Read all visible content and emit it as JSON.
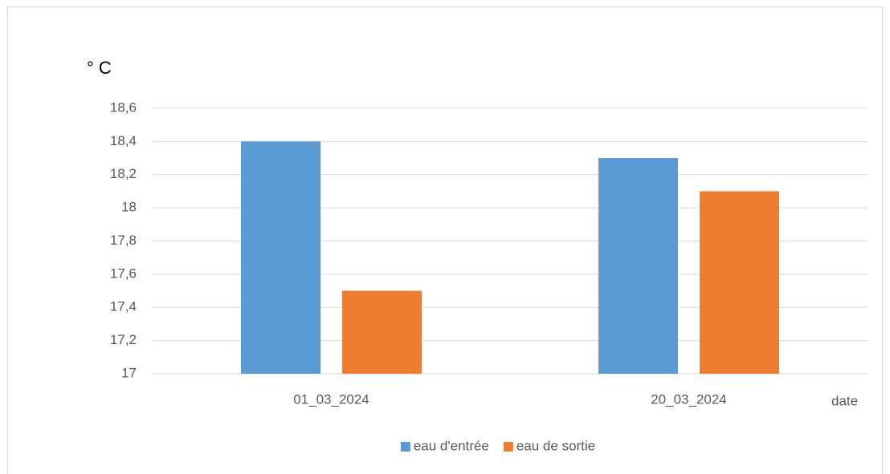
{
  "chart_data": {
    "type": "bar",
    "y_label": "° C",
    "x_label": "date",
    "categories": [
      "01_03_2024",
      "20_03_2024"
    ],
    "series": [
      {
        "name": "eau d'entrée",
        "color": "#5b9bd5",
        "values": [
          18.4,
          18.3
        ]
      },
      {
        "name": "eau de sortie",
        "color": "#ed7d31",
        "values": [
          17.5,
          18.1
        ]
      }
    ],
    "ylim": [
      17,
      18.6
    ],
    "yticks": [
      17,
      {
        "value": 17.2,
        "label": "17,2"
      },
      {
        "value": 17.4,
        "label": "17,4"
      },
      {
        "value": 17.6,
        "label": "17,6"
      },
      {
        "value": 17.8,
        "label": "17,8"
      },
      18,
      {
        "value": 18.2,
        "label": "18,2"
      },
      {
        "value": 18.4,
        "label": "18,4"
      },
      {
        "value": 18.6,
        "label": "18,6"
      }
    ],
    "grid": true,
    "legend": "bottom"
  }
}
